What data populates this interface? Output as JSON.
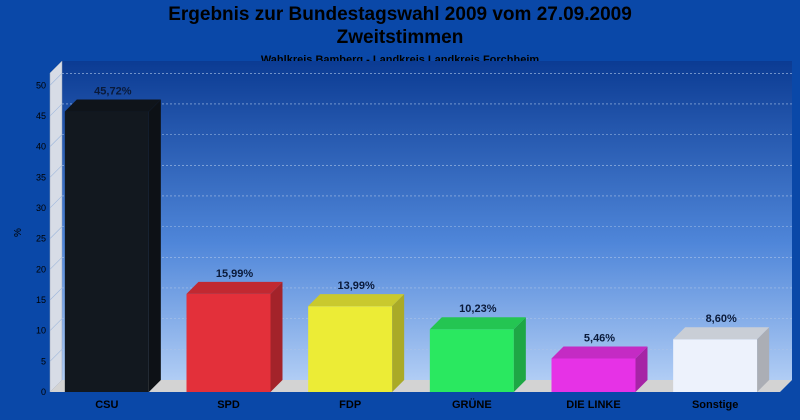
{
  "chart_data": {
    "type": "bar",
    "title": "Ergebnis zur Bundestagswahl 2009 vom 27.09.2009",
    "subtitle_line2": "Zweitstimmen",
    "subtitle": "Wahlkreis Bamberg - Landkreis Landkreis Forchheim",
    "ylabel": "%",
    "xlabel": "",
    "ylim": [
      0,
      52
    ],
    "yticks": [
      "0",
      "5",
      "10",
      "15",
      "20",
      "25",
      "30",
      "35",
      "40",
      "45",
      "50"
    ],
    "grid": true,
    "categories": [
      "CSU",
      "SPD",
      "FDP",
      "GRÜNE",
      "DIE LINKE",
      "Sonstige"
    ],
    "values": [
      45.72,
      15.99,
      13.99,
      10.23,
      5.46,
      8.6
    ],
    "value_labels": [
      "45,72%",
      "15,99%",
      "13,99%",
      "10,23%",
      "5,46%",
      "8,60%"
    ],
    "colors": [
      "#12181f",
      "#e3303a",
      "#ecec36",
      "#2ae860",
      "#e632e6",
      "#edf2fc"
    ]
  }
}
